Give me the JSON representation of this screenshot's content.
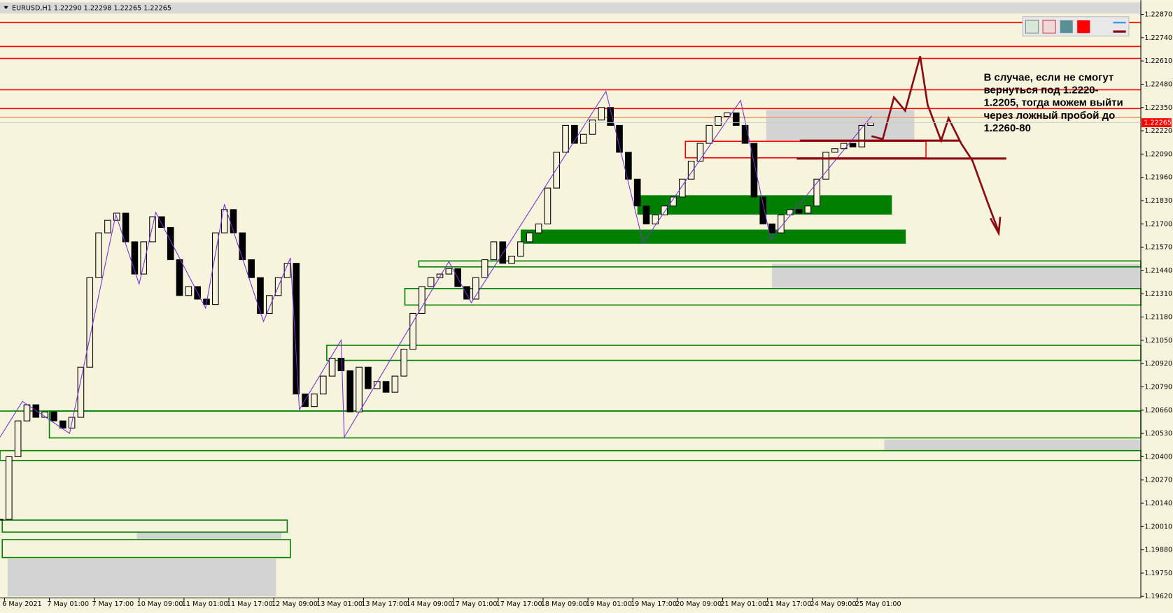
{
  "chart_data": {
    "type": "candlestick",
    "header": "EURUSD,H1  1.22290 1.22298 1.22265 1.22265",
    "annotation": [
      "В случае, если не смогут",
      "вернуться под 1.2220-",
      "1.2205, тогда можем выйти",
      "через ложный пробой до",
      "1.2260-80"
    ],
    "xlim": [
      -0.1,
      25.32
    ],
    "ylim": [
      1.1962,
      1.2287
    ],
    "xticks": [
      {
        "value": 0,
        "label": "6 May 2021"
      },
      {
        "value": 1,
        "label": "7 May 01:00"
      },
      {
        "value": 2,
        "label": "7 May 17:00"
      },
      {
        "value": 3,
        "label": "10 May 09:00"
      },
      {
        "value": 4,
        "label": "11 May 01:00"
      },
      {
        "value": 5,
        "label": "11 May 17:00"
      },
      {
        "value": 6,
        "label": "12 May 09:00"
      },
      {
        "value": 7,
        "label": "13 May 01:00"
      },
      {
        "value": 8,
        "label": "13 May 17:00"
      },
      {
        "value": 9,
        "label": "14 May 09:00"
      },
      {
        "value": 10,
        "label": "17 May 01:00"
      },
      {
        "value": 11,
        "label": "17 May 17:00"
      },
      {
        "value": 12,
        "label": "18 May 09:00"
      },
      {
        "value": 13,
        "label": "19 May 01:00"
      },
      {
        "value": 14,
        "label": "19 May 17:00"
      },
      {
        "value": 15,
        "label": "20 May 09:00"
      },
      {
        "value": 16,
        "label": "21 May 01:00"
      },
      {
        "value": 17,
        "label": "21 May 17:00"
      },
      {
        "value": 18,
        "label": "24 May 09:00"
      },
      {
        "value": 19,
        "label": "25 May 01:00"
      }
    ],
    "yticks": [
      {
        "value": 1.2287,
        "label": "1.22870"
      },
      {
        "value": 1.2274,
        "label": "1.22740"
      },
      {
        "value": 1.2261,
        "label": "1.22610"
      },
      {
        "value": 1.2248,
        "label": "1.22480"
      },
      {
        "value": 1.2235,
        "label": "1.22350"
      },
      {
        "value": 1.2222,
        "label": "1.22220"
      },
      {
        "value": 1.2209,
        "label": "1.22090"
      },
      {
        "value": 1.2196,
        "label": "1.21960"
      },
      {
        "value": 1.2183,
        "label": "1.21830"
      },
      {
        "value": 1.217,
        "label": "1.21700"
      },
      {
        "value": 1.2157,
        "label": "1.21570"
      },
      {
        "value": 1.2144,
        "label": "1.21440"
      },
      {
        "value": 1.2131,
        "label": "1.21310"
      },
      {
        "value": 1.2118,
        "label": "1.21180"
      },
      {
        "value": 1.2105,
        "label": "1.21050"
      },
      {
        "value": 1.2092,
        "label": "1.20920"
      },
      {
        "value": 1.2079,
        "label": "1.20790"
      },
      {
        "value": 1.2066,
        "label": "1.20660"
      },
      {
        "value": 1.2053,
        "label": "1.20530"
      },
      {
        "value": 1.204,
        "label": "1.20400"
      },
      {
        "value": 1.2027,
        "label": "1.20270"
      },
      {
        "value": 1.2014,
        "label": "1.20140"
      },
      {
        "value": 1.2001,
        "label": "1.20010"
      },
      {
        "value": 1.1988,
        "label": "1.19880"
      },
      {
        "value": 1.1975,
        "label": "1.19750"
      },
      {
        "value": 1.1962,
        "label": "1.19620"
      }
    ],
    "current_price": {
      "value": 1.22265,
      "label": "1.22265"
    },
    "candle_color": "#000000",
    "x": [
      -0.1,
      0.1,
      0.3,
      0.5,
      0.7,
      0.9,
      1.1,
      1.3,
      1.5,
      1.7,
      1.9,
      2.1,
      2.3,
      2.5,
      2.7,
      2.9,
      3.1,
      3.3,
      3.5,
      3.7,
      3.9,
      4.1,
      4.3,
      4.5,
      4.7,
      4.9,
      5.1,
      5.3,
      5.5,
      5.7,
      5.9,
      6.1,
      6.3,
      6.5,
      6.7,
      6.9,
      7.1,
      7.3,
      7.5,
      7.7,
      7.9,
      8.1,
      8.3,
      8.5,
      8.7,
      8.9,
      9.1,
      9.3,
      9.5,
      9.7,
      9.9,
      10.1,
      10.3,
      10.5,
      10.7,
      10.9,
      11.1,
      11.3,
      11.5,
      11.7,
      11.9,
      12.1,
      12.3,
      12.5,
      12.7,
      12.9,
      13.1,
      13.3,
      13.5,
      13.7,
      13.9,
      14.1,
      14.3,
      14.5,
      14.7,
      14.9,
      15.1,
      15.3,
      15.5,
      15.7,
      15.9,
      16.1,
      16.3,
      16.5,
      16.7,
      16.9,
      17.1,
      17.3,
      17.5,
      17.7,
      17.9,
      18.1,
      18.3,
      18.5,
      18.7,
      18.9,
      19.1,
      19.3
    ],
    "close": [
      1.2005,
      1.204,
      1.206,
      1.2069,
      1.2062,
      1.2065,
      1.206,
      1.2056,
      1.2062,
      1.209,
      1.214,
      1.2165,
      1.2172,
      1.2176,
      1.216,
      1.2142,
      1.216,
      1.2174,
      1.2168,
      1.215,
      1.213,
      1.2135,
      1.2128,
      1.2125,
      1.2165,
      1.2178,
      1.2165,
      1.215,
      1.214,
      1.212,
      1.213,
      1.214,
      1.2148,
      1.2075,
      1.2068,
      1.2075,
      1.2085,
      1.2095,
      1.2088,
      1.2065,
      1.209,
      1.2078,
      1.2082,
      1.2076,
      1.2085,
      1.21,
      1.212,
      1.2135,
      1.214,
      1.2142,
      1.2145,
      1.2135,
      1.2128,
      1.214,
      1.215,
      1.216,
      1.2148,
      1.2152,
      1.216,
      1.2165,
      1.217,
      1.219,
      1.221,
      1.2225,
      1.2215,
      1.222,
      1.2228,
      1.2235,
      1.2225,
      1.221,
      1.2195,
      1.218,
      1.217,
      1.2175,
      1.218,
      1.2185,
      1.2195,
      1.2205,
      1.2215,
      1.2225,
      1.223,
      1.2232,
      1.2225,
      1.2215,
      1.2185,
      1.217,
      1.2165,
      1.2175,
      1.2178,
      1.2176,
      1.218,
      1.2195,
      1.221,
      1.2212,
      1.2215,
      1.2213,
      1.2225,
      1.22265
    ],
    "zigzag": {
      "color": "#7b2fd6",
      "x": [
        -0.1,
        0.4,
        1.45,
        2.48,
        3.0,
        3.37,
        4.48,
        4.9,
        5.77,
        6.37,
        6.57,
        7.5,
        7.57,
        9.9,
        10.4,
        13.4,
        14.23,
        16.4,
        17.07,
        19.32
      ],
      "values": [
        1.20509,
        1.20709,
        1.2053,
        1.21752,
        1.21364,
        1.21764,
        1.2123,
        1.2181,
        1.21155,
        1.2151,
        1.20663,
        1.21051,
        1.20509,
        1.21489,
        1.2126,
        1.2244,
        1.21593,
        1.2239,
        1.21614,
        1.22303
      ]
    },
    "levels": [
      {
        "price": 1.22824,
        "color": "#ff0000"
      },
      {
        "price": 1.22691,
        "color": "#ff0000"
      },
      {
        "price": 1.22624,
        "color": "#ff0000"
      },
      {
        "price": 1.22449,
        "color": "#ff0000"
      },
      {
        "price": 1.22344,
        "color": "#ff0000"
      },
      {
        "price": 1.22294,
        "color": "#f0a070"
      },
      {
        "price": 1.20655,
        "color": "#008000"
      }
    ],
    "zones": [
      {
        "x0": 16.97,
        "x1": 20.27,
        "p0": 1.22336,
        "p1": 1.22165,
        "fill": "#d3d3d3",
        "stroke": "none"
      },
      {
        "x0": 17.1,
        "x1": 25.32,
        "p0": 1.21477,
        "p1": 1.21343,
        "fill": "#d3d3d3",
        "stroke": "none"
      },
      {
        "x0": 19.6,
        "x1": 25.32,
        "p0": 1.20496,
        "p1": 1.20438,
        "fill": "#d3d3d3",
        "stroke": "none"
      },
      {
        "x0": 2.95,
        "x1": 6.17,
        "p0": 1.19979,
        "p1": 1.19941,
        "fill": "#d3d3d3",
        "stroke": "none"
      },
      {
        "x0": 0.07,
        "x1": 6.05,
        "p0": 1.19829,
        "p1": 1.1962,
        "fill": "#d3d3d3",
        "stroke": "none"
      },
      {
        "x0": 14.1,
        "x1": 19.77,
        "p0": 1.2186,
        "p1": 1.21752,
        "fill": "#008000",
        "stroke": "none"
      },
      {
        "x0": 11.5,
        "x1": 20.08,
        "p0": 1.21668,
        "p1": 1.21589,
        "fill": "#008000",
        "stroke": "none"
      },
      {
        "x0": 9.23,
        "x1": 25.32,
        "p0": 1.21493,
        "p1": 1.2146,
        "fill": "none",
        "stroke": "#008000"
      },
      {
        "x0": 8.92,
        "x1": 25.32,
        "p0": 1.21339,
        "p1": 1.21247,
        "fill": "none",
        "stroke": "#008000"
      },
      {
        "x0": 7.18,
        "x1": 25.32,
        "p0": 1.21022,
        "p1": 1.20938,
        "fill": "none",
        "stroke": "#008000"
      },
      {
        "x0": 1.0,
        "x1": 25.32,
        "p0": 1.20655,
        "p1": 1.20505,
        "fill": "none",
        "stroke": "#008000"
      },
      {
        "x0": -0.1,
        "x1": 25.32,
        "p0": 1.20434,
        "p1": 1.20379,
        "fill": "none",
        "stroke": "#008000"
      },
      {
        "x0": -0.05,
        "x1": 6.3,
        "p0": 1.20046,
        "p1": 1.19979,
        "fill": "none",
        "stroke": "#008000"
      },
      {
        "x0": -0.05,
        "x1": 6.37,
        "p0": 1.19937,
        "p1": 1.19837,
        "fill": "none",
        "stroke": "#008000"
      },
      {
        "x0": 15.17,
        "x1": 20.53,
        "p0": 1.22161,
        "p1": 1.22069,
        "fill": "none",
        "stroke": "#ff0000"
      }
    ],
    "trend_lines": [
      {
        "x0": 17.72,
        "x1": 21.27,
        "price": 1.22165,
        "color": "#8b0a14"
      },
      {
        "x0": 17.65,
        "x1": 22.32,
        "price": 1.22065,
        "color": "#8b0a14"
      }
    ]
  }
}
